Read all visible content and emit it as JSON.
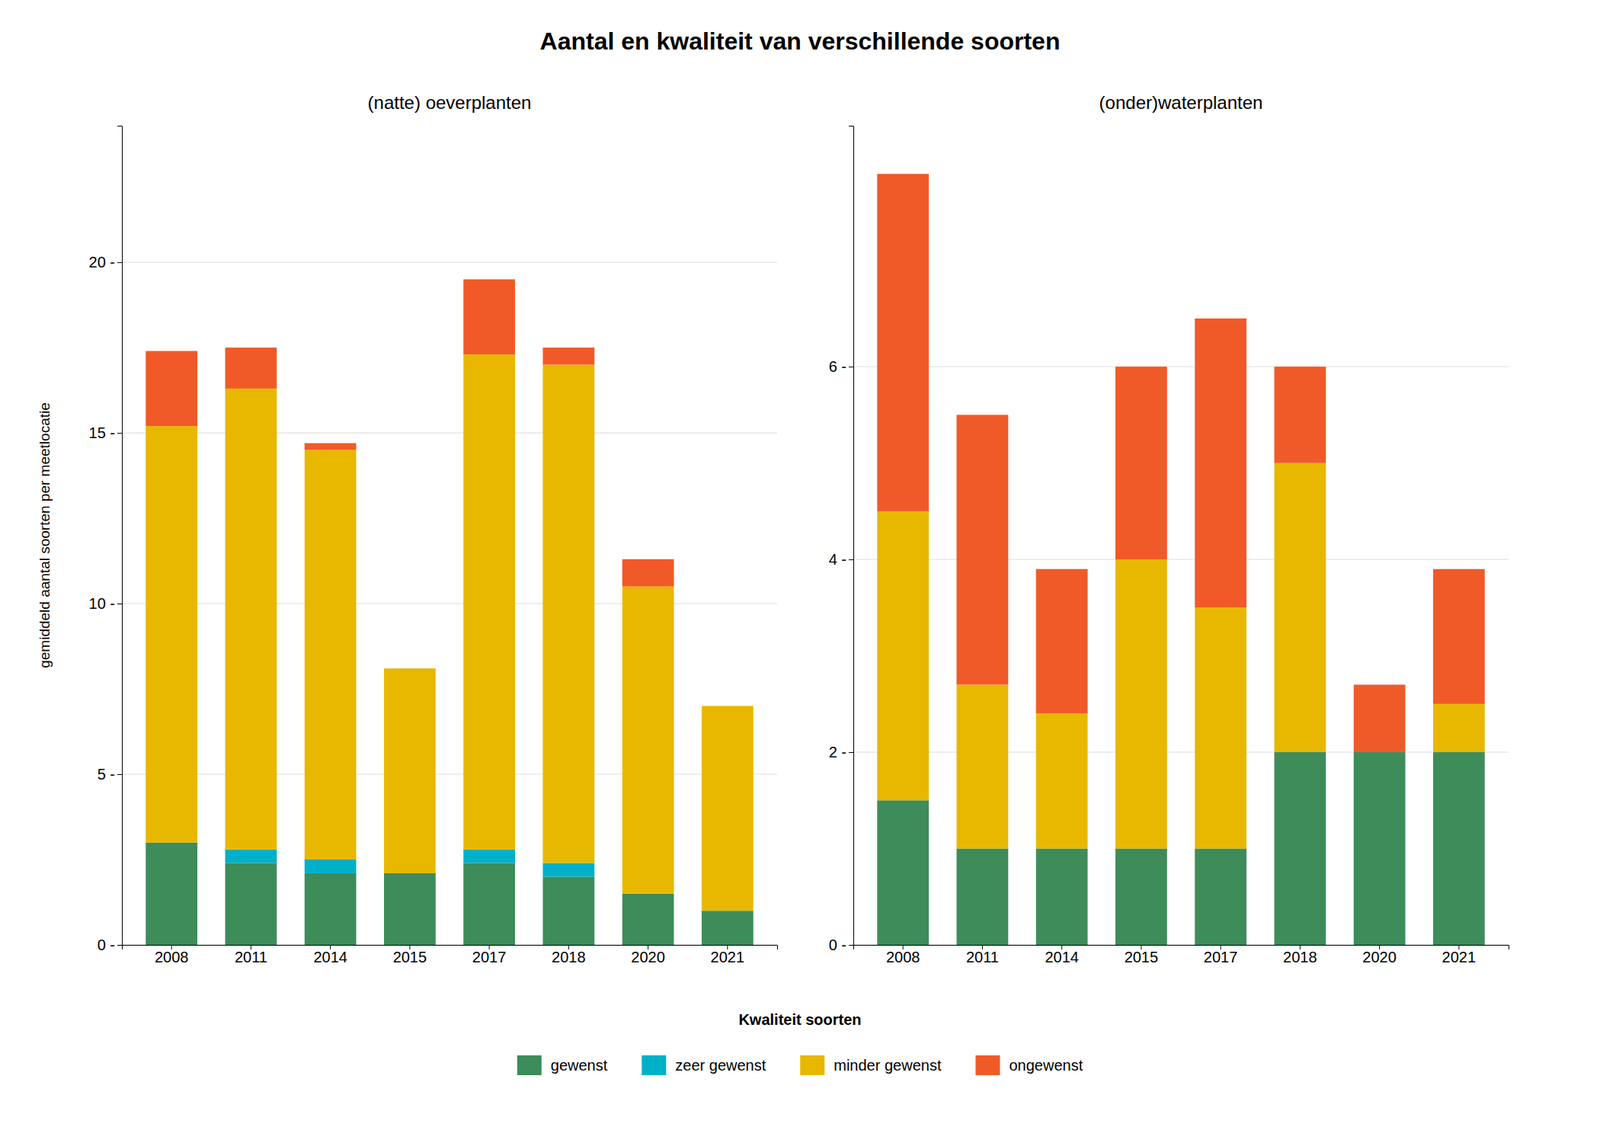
{
  "chart_data": [
    {
      "type": "bar",
      "stacked": true,
      "grid": true,
      "title": "Aantal en kwaliteit van verschillende soorten",
      "subtitle": "(natte) oeverplanten",
      "ylabel": "gemiddeld aantal soorten per meetlocatie",
      "legend_title": "Kwaliteit soorten",
      "categories": [
        "2008",
        "2011",
        "2014",
        "2015",
        "2017",
        "2018",
        "2020",
        "2021"
      ],
      "series": [
        {
          "name": "gewenst",
          "color": "#3D8C5A",
          "values": [
            3.0,
            2.4,
            2.1,
            2.1,
            2.4,
            2.0,
            1.5,
            1.0
          ]
        },
        {
          "name": "zeer gewenst",
          "color": "#00B0C8",
          "values": [
            0.0,
            0.4,
            0.4,
            0.0,
            0.4,
            0.4,
            0.0,
            0.0
          ]
        },
        {
          "name": "minder gewenst",
          "color": "#E8B800",
          "values": [
            12.2,
            13.5,
            12.0,
            6.0,
            14.5,
            14.6,
            9.0,
            6.0
          ]
        },
        {
          "name": "ongewenst",
          "color": "#F05A28",
          "values": [
            2.2,
            1.2,
            0.2,
            0.0,
            2.2,
            0.5,
            0.8,
            0.0
          ]
        }
      ],
      "ylim": [
        0,
        24
      ],
      "yticks": [
        {
          "value": 0,
          "label": "0 -"
        },
        {
          "value": 5,
          "label": "5 -"
        },
        {
          "value": 10,
          "label": "10 -"
        },
        {
          "value": 15,
          "label": "15 -"
        },
        {
          "value": 20,
          "label": "20 -"
        }
      ]
    },
    {
      "type": "bar",
      "stacked": true,
      "grid": true,
      "subtitle": "(onder)waterplanten",
      "categories": [
        "2008",
        "2011",
        "2014",
        "2015",
        "2017",
        "2018",
        "2020",
        "2021"
      ],
      "series": [
        {
          "name": "gewenst",
          "color": "#3D8C5A",
          "values": [
            1.5,
            1.0,
            1.0,
            1.0,
            1.0,
            2.0,
            2.0,
            2.0
          ]
        },
        {
          "name": "zeer gewenst",
          "color": "#00B0C8",
          "values": [
            0.0,
            0.0,
            0.0,
            0.0,
            0.0,
            0.0,
            0.0,
            0.0
          ]
        },
        {
          "name": "minder gewenst",
          "color": "#E8B800",
          "values": [
            3.0,
            1.7,
            1.4,
            3.0,
            2.5,
            3.0,
            0.0,
            0.5
          ]
        },
        {
          "name": "ongewenst",
          "color": "#F05A28",
          "values": [
            3.5,
            2.8,
            1.5,
            2.0,
            3.0,
            1.0,
            0.7,
            1.4
          ]
        }
      ],
      "ylim": [
        0,
        8.5
      ],
      "yticks": [
        {
          "value": 0,
          "label": "0 -"
        },
        {
          "value": 2,
          "label": "2 -"
        },
        {
          "value": 4,
          "label": "4 -"
        },
        {
          "value": 6,
          "label": "6 -"
        }
      ]
    }
  ]
}
